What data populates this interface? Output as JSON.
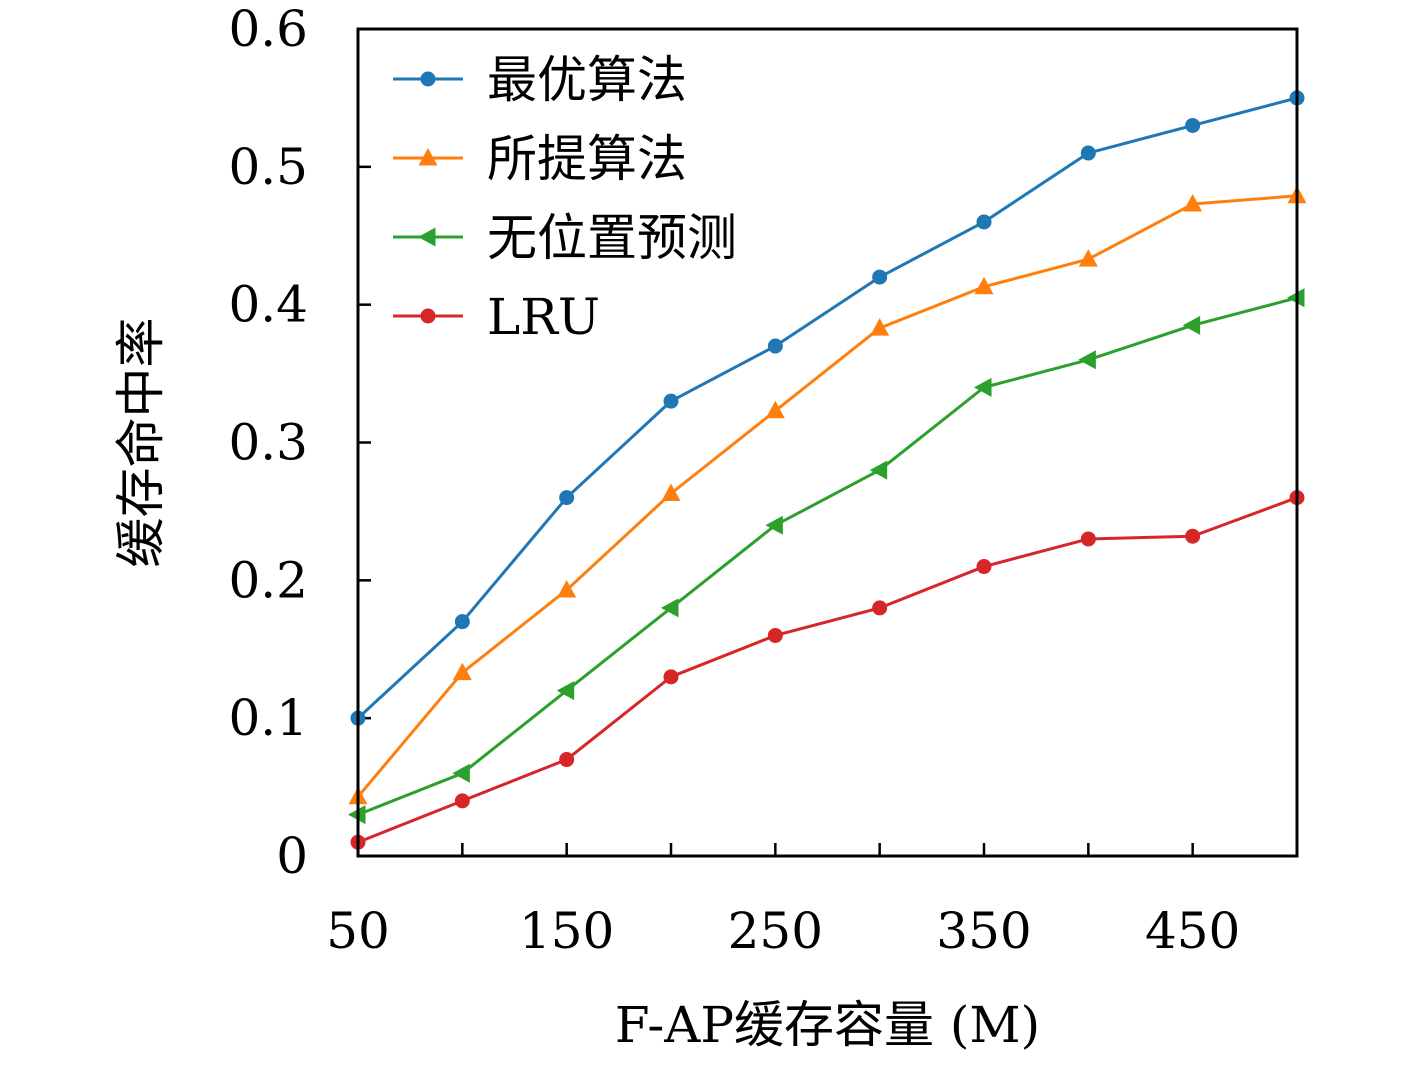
{
  "chart_data": {
    "type": "line",
    "xlabel": "F-AP缓存容量 (M)",
    "ylabel": "缓存命中率",
    "xlim": [
      50,
      500
    ],
    "ylim": [
      0,
      0.6
    ],
    "xticks": [
      50,
      150,
      250,
      350,
      450
    ],
    "yticks": [
      0,
      0.1,
      0.2,
      0.3,
      0.4,
      0.5,
      0.6
    ],
    "ytick_labels": [
      "0",
      "0.1",
      "0.2",
      "0.3",
      "0.4",
      "0.5",
      "0.6"
    ],
    "x": [
      50,
      100,
      150,
      200,
      250,
      300,
      350,
      400,
      450,
      500
    ],
    "grid": false,
    "legend_position": "top-left",
    "series": [
      {
        "name": "最优算法",
        "color": "#1f77b4",
        "marker": "circle",
        "values": [
          0.1,
          0.17,
          0.26,
          0.33,
          0.37,
          0.42,
          0.46,
          0.51,
          0.53,
          0.55
        ]
      },
      {
        "name": "所提算法",
        "color": "#ff7f0e",
        "marker": "triangle-up",
        "values": [
          0.043,
          0.133,
          0.193,
          0.263,
          0.323,
          0.383,
          0.413,
          0.433,
          0.473,
          0.479
        ]
      },
      {
        "name": "无位置预测",
        "color": "#2ca02c",
        "marker": "triangle-left",
        "values": [
          0.03,
          0.06,
          0.12,
          0.18,
          0.24,
          0.28,
          0.34,
          0.36,
          0.385,
          0.405
        ]
      },
      {
        "name": "LRU",
        "color": "#d62728",
        "marker": "circle",
        "values": [
          0.01,
          0.04,
          0.07,
          0.13,
          0.16,
          0.18,
          0.21,
          0.23,
          0.232,
          0.26
        ]
      }
    ]
  }
}
